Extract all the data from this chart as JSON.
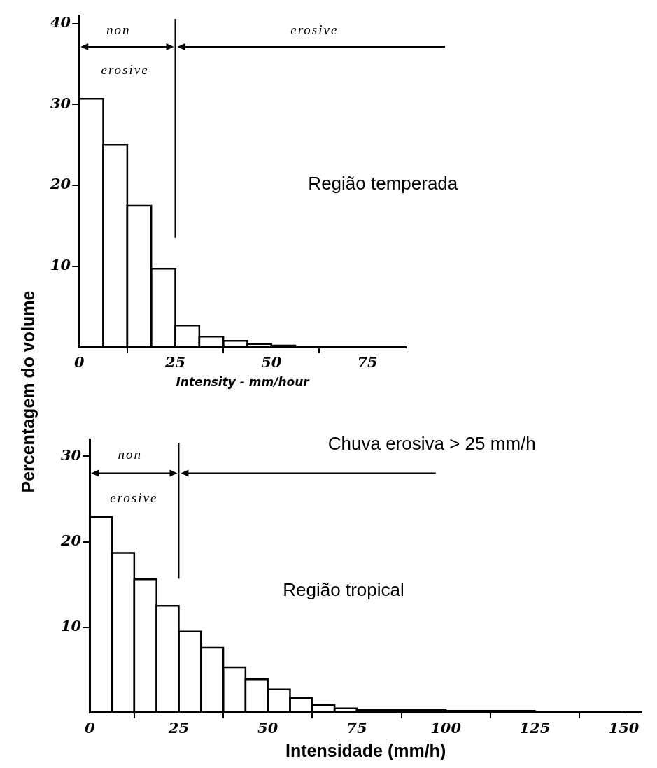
{
  "chart_data": [
    {
      "type": "histogram",
      "xlabel": "Intensity - mm/hour",
      "ylabel": "Percentagem do volume",
      "bins": [
        0,
        6.25,
        12.5,
        18.75,
        25,
        31.25,
        37.5,
        43.75,
        50,
        56.25
      ],
      "values": [
        30.7,
        25,
        17.5,
        9.7,
        2.7,
        1.3,
        0.8,
        0.4,
        0.2
      ],
      "color": "#000000",
      "xlim": [
        0,
        85
      ],
      "xticks": [
        0,
        25,
        50,
        75
      ],
      "ylim": [
        0,
        41
      ],
      "yticks": [
        10,
        20,
        30,
        40
      ],
      "ref_lines": [
        {
          "axis": "x",
          "value": 25
        }
      ],
      "annotations": [
        "non",
        "erosive",
        "erosive",
        "Região temperada"
      ]
    },
    {
      "type": "histogram",
      "xlabel": "Intensidade (mm/h)",
      "bins": [
        0,
        6.25,
        12.5,
        18.75,
        25,
        31.25,
        37.5,
        43.75,
        50,
        56.25,
        62.5,
        68.75,
        75,
        100,
        125,
        150
      ],
      "values": [
        22.9,
        18.7,
        15.6,
        12.5,
        9.5,
        7.6,
        5.3,
        3.9,
        2.7,
        1.7,
        0.9,
        0.5,
        0.3,
        0.2,
        0.1
      ],
      "color": "#000000",
      "xlim": [
        0,
        155
      ],
      "xticks": [
        0,
        25,
        50,
        75,
        100,
        125,
        150
      ],
      "ylim": [
        0,
        32
      ],
      "yticks": [
        10,
        20,
        30
      ],
      "ref_lines": [
        {
          "axis": "x",
          "value": 25
        }
      ],
      "annotations": [
        "non",
        "erosive",
        "Chuva erosiva > 25 mm/h",
        "Região tropical"
      ]
    }
  ]
}
